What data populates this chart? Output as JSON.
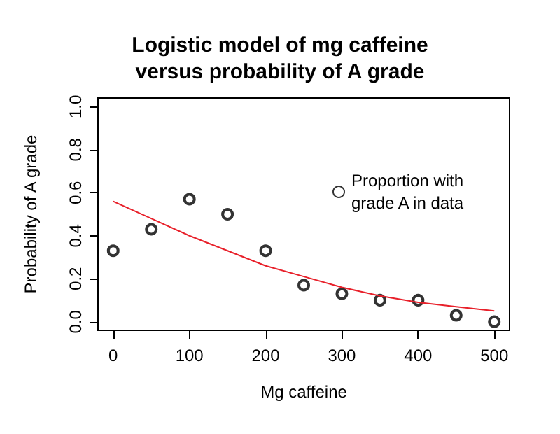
{
  "chart_data": {
    "type": "scatter",
    "title": "Logistic model of mg caffeine\nversus probability of A grade",
    "xlabel": "Mg caffeine",
    "ylabel": "Probability of A grade",
    "xlim": [
      -20,
      520
    ],
    "xticks": [
      0,
      100,
      200,
      300,
      400,
      500
    ],
    "ylim": [
      -0.04,
      1.04
    ],
    "yticks": [
      {
        "value": 0,
        "label": "0.0"
      },
      {
        "value": 0.2,
        "label": "0.2"
      },
      {
        "value": 0.4,
        "label": "0.4"
      },
      {
        "value": 0.6,
        "label": "0.6"
      },
      {
        "value": 0.8,
        "label": "0.8"
      },
      {
        "value": 1,
        "label": "1.0"
      }
    ],
    "grid": false,
    "legend": "top right",
    "series": [
      {
        "name": "Proportion with grade A in data",
        "marker": "circle",
        "color": "#000000",
        "x": [
          0,
          50,
          100,
          150,
          200,
          250,
          300,
          350,
          400,
          450,
          500
        ],
        "values": [
          0.33,
          0.43,
          0.57,
          0.5,
          0.33,
          0.17,
          0.13,
          0.1,
          0.1,
          0.03,
          0.0
        ]
      },
      {
        "type": "line",
        "color": "#e8202a",
        "x": [
          0,
          50,
          100,
          150,
          200,
          250,
          300,
          350,
          400,
          450,
          500
        ],
        "values": [
          0.56,
          0.48,
          0.4,
          0.33,
          0.26,
          0.21,
          0.16,
          0.12,
          0.09,
          0.07,
          0.05
        ]
      }
    ]
  }
}
